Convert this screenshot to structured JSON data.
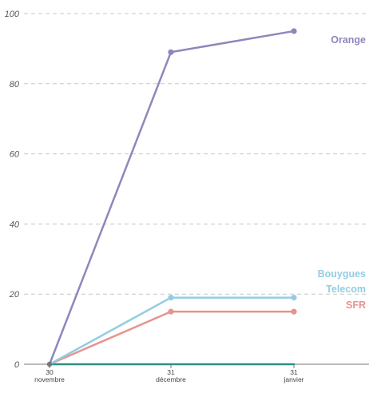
{
  "chart_data": {
    "type": "line",
    "title": "",
    "xlabel": "",
    "ylabel": "",
    "ylim": [
      0,
      100
    ],
    "y_ticks": [
      0,
      20,
      40,
      60,
      80,
      100
    ],
    "grid": true,
    "categories": [
      {
        "day": "30",
        "month": "novembre"
      },
      {
        "day": "31",
        "month": "décembre"
      },
      {
        "day": "31",
        "month": "janvier"
      }
    ],
    "series": [
      {
        "name": "Orange",
        "label_lines": [
          "Orange"
        ],
        "color": "#8e87bd",
        "values": [
          0,
          89,
          95
        ]
      },
      {
        "name": "Bouygues Telecom",
        "label_lines": [
          "Bouygues",
          "Telecom"
        ],
        "color": "#93cde3",
        "values": [
          0,
          19,
          19
        ]
      },
      {
        "name": "SFR",
        "label_lines": [
          "SFR"
        ],
        "color": "#e8938f",
        "values": [
          0,
          15,
          15
        ]
      },
      {
        "name": "",
        "label_lines": [],
        "color": "#2e8f86",
        "values": [
          0,
          0,
          0
        ]
      }
    ],
    "axis_color": "#777777",
    "grid_color": "#c8c8c8"
  }
}
